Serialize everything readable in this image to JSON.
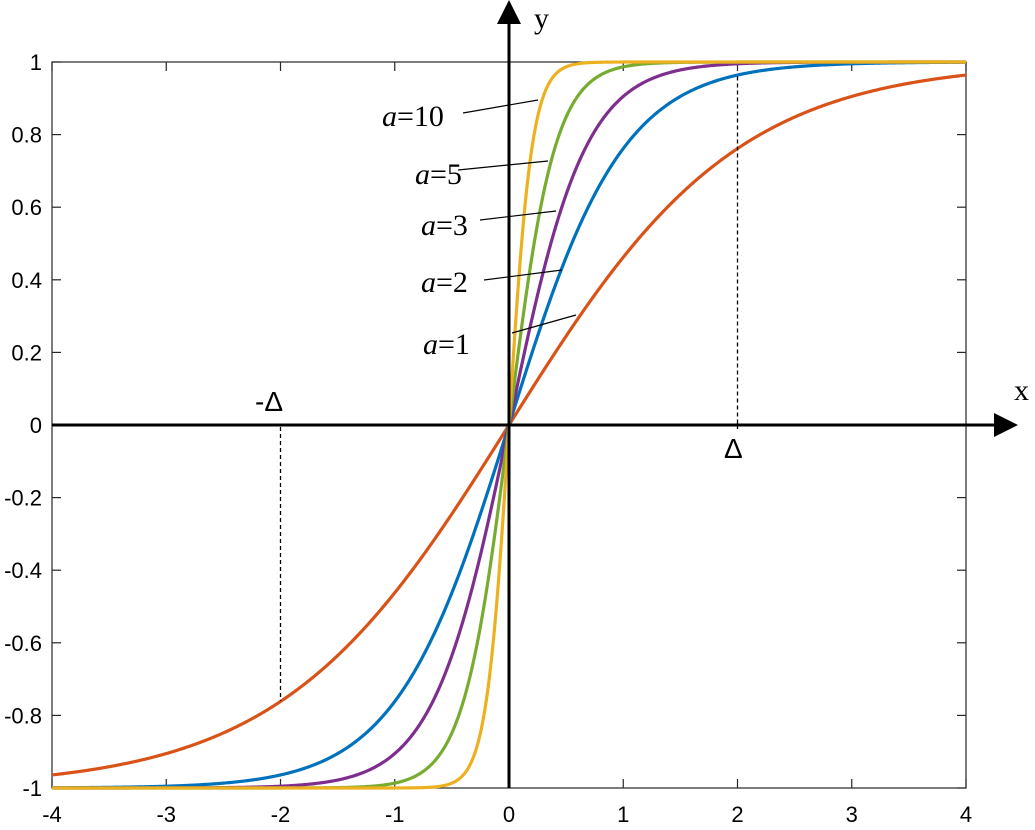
{
  "chart_data": {
    "type": "line",
    "title": "",
    "xlabel": "x",
    "ylabel": "y",
    "xlim": [
      -4,
      4
    ],
    "ylim": [
      -1,
      1
    ],
    "grid": false,
    "x_ticks": [
      "-4",
      "-3",
      "-2",
      "-1",
      "0",
      "1",
      "2",
      "3",
      "4"
    ],
    "y_ticks": [
      "-1",
      "-0.8",
      "-0.6",
      "-0.4",
      "-0.2",
      "0",
      "0.2",
      "0.4",
      "0.6",
      "0.8",
      "1"
    ],
    "series": [
      {
        "param_symbol": "a",
        "param_text": "=1",
        "a": 1,
        "color": "#D95319",
        "x": [
          -4,
          -3.5,
          -3,
          -2.5,
          -2,
          -1.5,
          -1,
          -0.5,
          0,
          0.5,
          1,
          1.5,
          2,
          2.5,
          3,
          3.5,
          4
        ],
        "y": [
          -0.964,
          -0.942,
          -0.905,
          -0.848,
          -0.762,
          -0.635,
          -0.462,
          -0.245,
          0,
          0.245,
          0.462,
          0.635,
          0.762,
          0.848,
          0.905,
          0.942,
          0.964
        ]
      },
      {
        "param_symbol": "a",
        "param_text": "=2",
        "a": 2,
        "color": "#0072BD",
        "x": [
          -4,
          -3,
          -2,
          -1.5,
          -1,
          -0.75,
          -0.5,
          -0.25,
          0,
          0.25,
          0.5,
          0.75,
          1,
          1.5,
          2,
          3,
          4
        ],
        "y": [
          -0.9993,
          -0.995,
          -0.964,
          -0.905,
          -0.762,
          -0.635,
          -0.462,
          -0.245,
          0,
          0.245,
          0.462,
          0.635,
          0.762,
          0.905,
          0.964,
          0.995,
          0.9993
        ]
      },
      {
        "param_symbol": "a",
        "param_text": "=3",
        "a": 3,
        "color": "#7E2F8E",
        "x": [
          -4,
          -2,
          -1.5,
          -1,
          -0.75,
          -0.5,
          -0.33,
          -0.17,
          0,
          0.17,
          0.33,
          0.5,
          0.75,
          1,
          1.5,
          2,
          4
        ],
        "y": [
          -1,
          -0.9975,
          -0.989,
          -0.951,
          -0.888,
          -0.762,
          -0.617,
          -0.371,
          0,
          0.371,
          0.617,
          0.762,
          0.888,
          0.951,
          0.989,
          0.9975,
          1
        ]
      },
      {
        "param_symbol": "a",
        "param_text": "=5",
        "a": 5,
        "color": "#77AC30",
        "x": [
          -4,
          -1.5,
          -1,
          -0.75,
          -0.5,
          -0.35,
          -0.2,
          -0.1,
          0,
          0.1,
          0.2,
          0.35,
          0.5,
          0.75,
          1,
          1.5,
          4
        ],
        "y": [
          -1,
          -0.9989,
          -0.991,
          -0.964,
          -0.848,
          -0.725,
          -0.462,
          -0.245,
          0,
          0.245,
          0.462,
          0.725,
          0.848,
          0.964,
          0.991,
          0.9989,
          1
        ]
      },
      {
        "param_symbol": "a",
        "param_text": "=10",
        "a": 10,
        "color": "#EDB120",
        "x": [
          -4,
          -1,
          -0.6,
          -0.4,
          -0.3,
          -0.2,
          -0.1,
          -0.05,
          0,
          0.05,
          0.1,
          0.2,
          0.3,
          0.4,
          0.6,
          1,
          4
        ],
        "y": [
          -1,
          -1,
          -0.99,
          -0.93,
          -0.86,
          -0.635,
          -0.245,
          -0.124,
          0,
          0.124,
          0.245,
          0.635,
          0.86,
          0.93,
          0.99,
          1,
          1
        ]
      }
    ],
    "annotations": {
      "delta_pos": {
        "text": "Δ",
        "x": 2,
        "y_top": 0.96
      },
      "delta_neg": {
        "text": "-Δ",
        "x": -2,
        "y_bottom": -0.76
      }
    }
  }
}
